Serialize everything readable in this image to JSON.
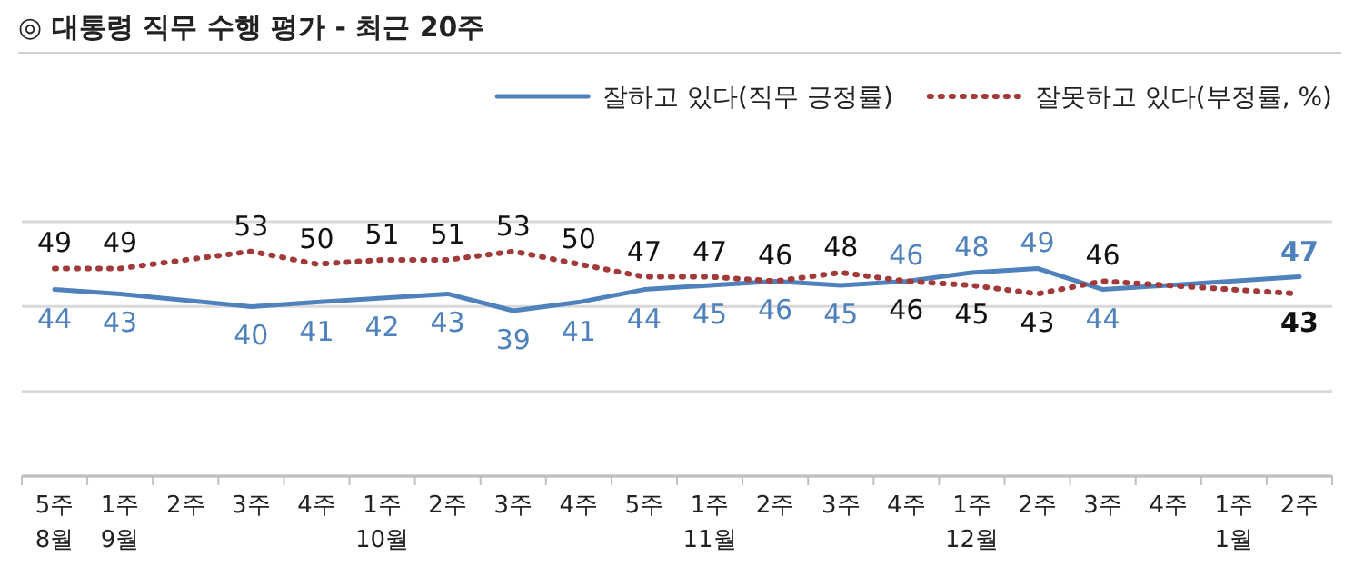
{
  "chart_data": {
    "type": "line",
    "title": "◎  대통령 직무 수행 평가 - 최근 20주",
    "categories": [
      "5주\n8월",
      "1주\n9월",
      "2주",
      "3주",
      "4주",
      "1주\n10월",
      "2주",
      "3주",
      "4주",
      "5주",
      "1주\n11월",
      "2주",
      "3주",
      "4주",
      "1주\n12월",
      "2주",
      "3주",
      "4주",
      "1주\n1월",
      "2주"
    ],
    "series": [
      {
        "name": "잘하고 있다(직무 긍정률)",
        "color": "#4f81bd",
        "line_style": "solid",
        "values": [
          44,
          43,
          null,
          40,
          41,
          42,
          43,
          39,
          41,
          44,
          45,
          46,
          45,
          46,
          48,
          49,
          44,
          null,
          null,
          47
        ]
      },
      {
        "name": "잘못하고 있다(부정률, %)",
        "color": "#a33a3a",
        "line_style": "dotted",
        "values": [
          49,
          49,
          null,
          53,
          50,
          51,
          51,
          53,
          50,
          47,
          47,
          46,
          48,
          46,
          45,
          43,
          46,
          null,
          null,
          43
        ]
      }
    ],
    "ylim": [
      0,
      60
    ],
    "yticks": [
      {
        "value": 0,
        "label": null
      },
      {
        "value": 20,
        "label": null
      },
      {
        "value": 40,
        "label": null
      },
      {
        "value": 60,
        "label": null
      }
    ],
    "tick_labels": "x",
    "grid": "y",
    "legend": "top right",
    "marker": "none",
    "data_labels": true
  }
}
